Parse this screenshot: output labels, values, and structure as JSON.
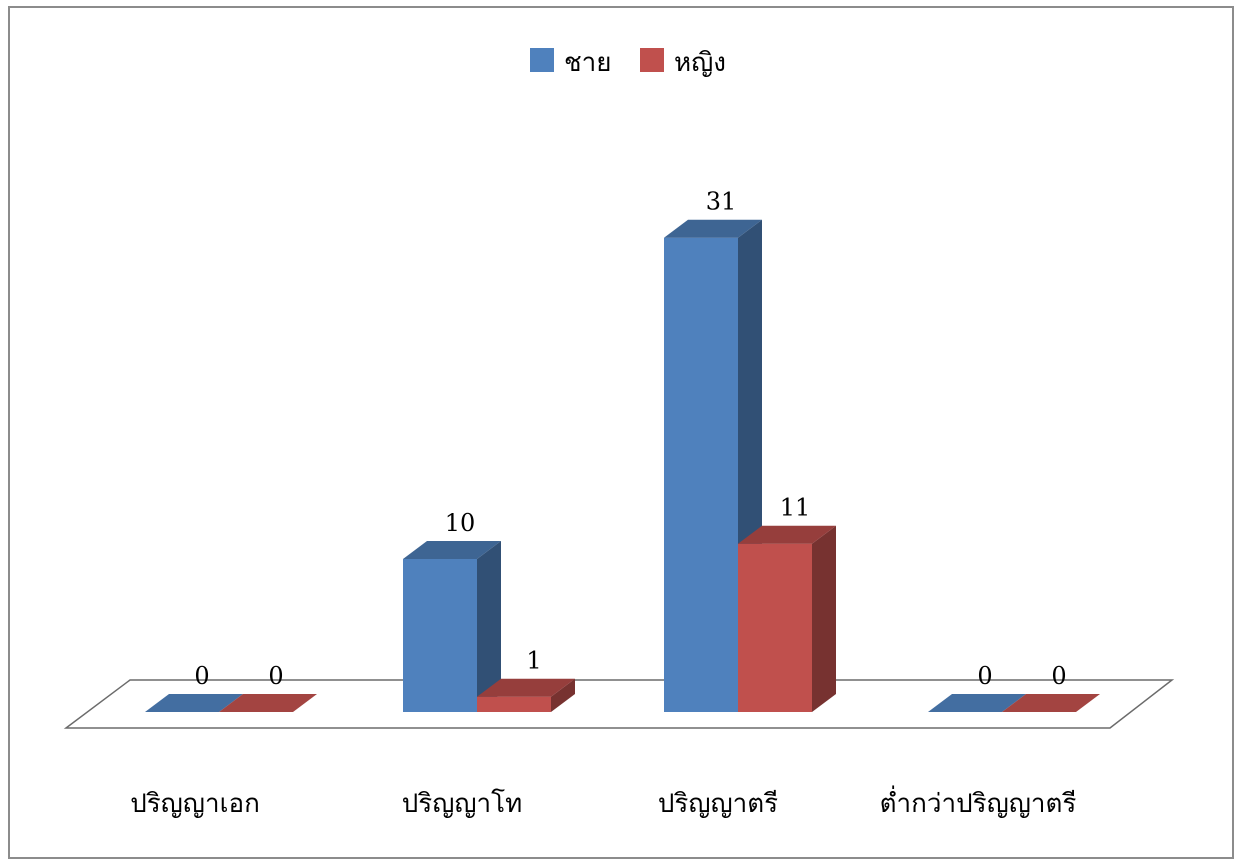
{
  "chart_data": {
    "type": "bar",
    "categories": [
      "ปริญญาเอก",
      "ปริญญาโท",
      "ปริญญาตรี",
      "ต่ำกว่าปริญญาตรี"
    ],
    "series": [
      {
        "name": "ชาย",
        "values": [
          0,
          10,
          31,
          0
        ],
        "color": "#4f81bd"
      },
      {
        "name": "หญิง",
        "values": [
          0,
          1,
          11,
          0
        ],
        "color": "#c0504d"
      }
    ],
    "data_labels": true,
    "three_d": true,
    "grid": false,
    "legend_position": "top"
  }
}
